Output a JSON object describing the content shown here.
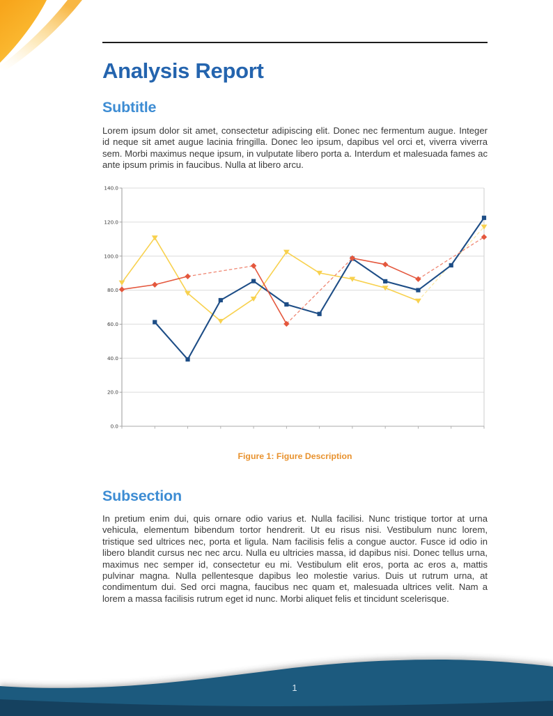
{
  "header": {
    "title": "Analysis Report"
  },
  "sections": {
    "subtitle": {
      "heading": "Subtitle",
      "body": "Lorem ipsum dolor sit amet, consectetur adipiscing elit. Donec nec fermentum augue. Integer id neque sit amet augue lacinia fringilla. Donec leo ipsum, dapibus vel orci et, viverra viverra sem. Morbi maximus neque ipsum, in vulputate libero porta a. Interdum et malesuada fames ac ante ipsum primis in faucibus. Nulla at libero arcu."
    },
    "subsection": {
      "heading": "Subsection",
      "body": "In pretium enim dui, quis ornare odio varius et. Nulla facilisi. Nunc tristique tortor at urna vehicula, elementum bibendum tortor hendrerit. Ut eu risus nisi. Vestibulum nunc lorem, tristique sed ultrices nec, porta et ligula. Nam facilisis felis a congue auctor. Fusce id odio in libero blandit cursus nec nec arcu. Nulla eu ultricies massa, id dapibus nisi. Donec tellus urna, maximus nec semper id, consectetur eu mi. Vestibulum elit eros, porta ac eros a, mattis pulvinar magna. Nulla pellentesque dapibus leo molestie varius. Duis ut rutrum urna, at condimentum dui. Sed orci magna, faucibus nec quam et, malesuada ultrices velit. Nam a lorem a massa facilisis rutrum eget id nunc. Morbi aliquet felis et tincidunt scelerisque."
    }
  },
  "figure": {
    "caption_label": "Figure 1:",
    "caption_text": "Figure Description"
  },
  "footer": {
    "page_number": "1"
  },
  "colors": {
    "title_blue": "#2464AE",
    "heading_blue": "#3D8CD3",
    "caption_orange": "#E8922E",
    "footer_wave_main": "#1E5A7E",
    "footer_wave_dark": "#15415F",
    "corner_orange_deep": "#F7A51B",
    "corner_orange_light": "#FCCB4D"
  },
  "chart_data": {
    "type": "line",
    "x": [
      0,
      1,
      2,
      3,
      4,
      5,
      6,
      7,
      8,
      9,
      10,
      11
    ],
    "series": [
      {
        "name": "yellow-series",
        "color": "#F8D14E",
        "dash_color": "#FBE8A6",
        "marker": "triangle-down",
        "values": [
          84.4,
          110.8,
          78.2,
          61.8,
          74.9,
          102.4,
          90.1,
          86.5,
          81.3,
          73.7,
          null,
          117.2
        ]
      },
      {
        "name": "blue-series",
        "color": "#1D4D86",
        "dash_color": "#7FA3C9",
        "marker": "square",
        "values": [
          null,
          61.2,
          39.3,
          74.1,
          85.3,
          71.6,
          66.0,
          98.5,
          85.2,
          80.0,
          94.6,
          122.5
        ]
      },
      {
        "name": "red-series",
        "color": "#E4573D",
        "dash_color": "#EF8672",
        "marker": "diamond",
        "values": [
          80.4,
          83.2,
          88.1,
          null,
          94.3,
          60.2,
          null,
          98.8,
          95.1,
          86.5,
          null,
          111.2
        ]
      }
    ],
    "title": "",
    "xlabel": "",
    "ylabel": "",
    "ylim": [
      0,
      140
    ],
    "ytick_step": 20,
    "ytick_labels": [
      "0.0",
      "20.0",
      "40.0",
      "60.0",
      "80.0",
      "100.0",
      "120.0",
      "140.0"
    ],
    "xtick_labels": [],
    "grid": "horizontal",
    "legend": "none",
    "missing_data_style": "dashed-bridge"
  }
}
